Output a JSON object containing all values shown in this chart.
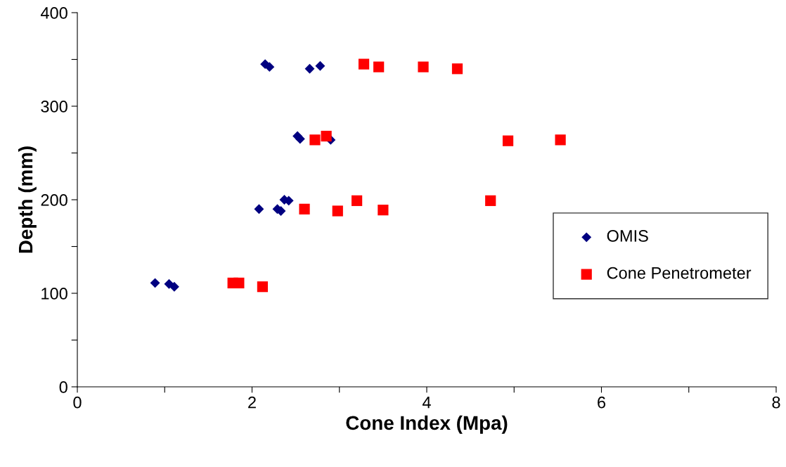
{
  "chart_data": {
    "type": "scatter",
    "xlabel": "Cone Index (Mpa)",
    "ylabel": "Depth (mm)",
    "xlim": [
      0,
      8
    ],
    "ylim": [
      0,
      400
    ],
    "xticks": [
      0,
      {
        "value": 1,
        "label": null
      },
      2,
      {
        "value": 3,
        "label": null
      },
      4,
      {
        "value": 5,
        "label": null
      },
      6,
      {
        "value": 7,
        "label": null
      },
      8
    ],
    "yticks": [
      0,
      {
        "value": 50,
        "label": null
      },
      100,
      {
        "value": 150,
        "label": null
      },
      200,
      {
        "value": 250,
        "label": null
      },
      300,
      {
        "value": 350,
        "label": null
      },
      400
    ],
    "grid": false,
    "legend": "right",
    "series": [
      {
        "name": "OMIS",
        "color": "#000080",
        "marker": "diamond",
        "x": [
          0.89,
          1.05,
          1.11,
          2.08,
          2.29,
          2.33,
          2.37,
          2.42,
          2.52,
          2.55,
          2.9,
          2.15,
          2.2,
          2.66,
          2.78
        ],
        "values": [
          111,
          110,
          107,
          190,
          190,
          188,
          200,
          199,
          268,
          265,
          264,
          345,
          342,
          340,
          343
        ]
      },
      {
        "name": "Cone Penetrometer",
        "color": "#ff0000",
        "marker": "square",
        "x": [
          1.78,
          1.85,
          2.12,
          2.6,
          2.72,
          2.85,
          2.98,
          3.2,
          3.28,
          3.45,
          3.5,
          3.96,
          4.35,
          4.73,
          4.93,
          5.53
        ],
        "values": [
          111,
          111,
          107,
          190,
          264,
          268,
          188,
          199,
          345,
          342,
          189,
          342,
          340,
          199,
          263,
          264
        ]
      }
    ]
  }
}
